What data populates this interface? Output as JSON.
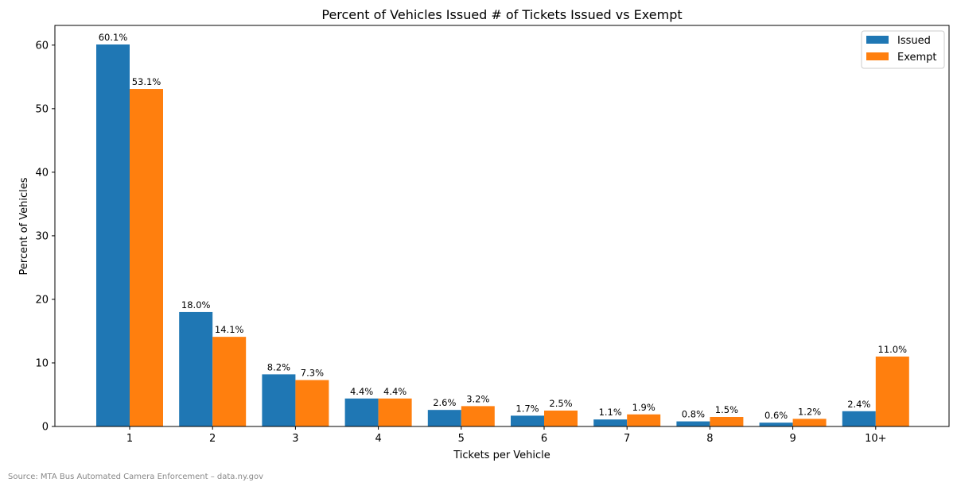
{
  "chart_data": {
    "type": "bar",
    "title": "Percent of Vehicles Issued # of Tickets Issued vs Exempt",
    "xlabel": "Tickets per Vehicle",
    "ylabel": "Percent of Vehicles",
    "categories": [
      "1",
      "2",
      "3",
      "4",
      "5",
      "6",
      "7",
      "8",
      "9",
      "10+"
    ],
    "series": [
      {
        "name": "Issued",
        "color": "#1f77b4",
        "values": [
          60.1,
          18.0,
          8.2,
          4.4,
          2.6,
          1.7,
          1.1,
          0.8,
          0.6,
          2.4
        ],
        "labels": [
          "60.1%",
          "18.0%",
          "8.2%",
          "4.4%",
          "2.6%",
          "1.7%",
          "1.1%",
          "0.8%",
          "0.6%",
          "2.4%"
        ]
      },
      {
        "name": "Exempt",
        "color": "#ff7f0e",
        "values": [
          53.1,
          14.1,
          7.3,
          4.4,
          3.2,
          2.5,
          1.9,
          1.5,
          1.2,
          11.0
        ],
        "labels": [
          "53.1%",
          "14.1%",
          "7.3%",
          "4.4%",
          "3.2%",
          "2.5%",
          "1.9%",
          "1.5%",
          "1.2%",
          "11.0%"
        ]
      }
    ],
    "ylim": [
      0,
      63.1
    ],
    "yticks": [
      0,
      10,
      20,
      30,
      40,
      50,
      60
    ],
    "legend_position": "top-right",
    "grid": false
  },
  "source_note": "Source: MTA Bus Automated Camera Enforcement – data.ny.gov"
}
